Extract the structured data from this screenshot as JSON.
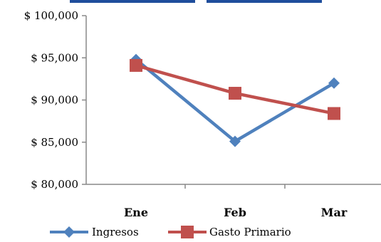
{
  "chart_data": {
    "type": "line",
    "categories": [
      "Ene",
      "Feb",
      "Mar"
    ],
    "series": [
      {
        "name": "Ingresos",
        "values": [
          94800,
          85100,
          92000
        ],
        "color": "#4f81bd",
        "marker": "diamond"
      },
      {
        "name": "Gasto Primario",
        "values": [
          94100,
          90800,
          88400
        ],
        "color": "#c0504d",
        "marker": "square"
      }
    ],
    "ylim": [
      80000,
      100000
    ],
    "yticks": [
      80000,
      85000,
      90000,
      95000,
      100000
    ],
    "ytick_labels": [
      "$ 80,000",
      "$ 85,000",
      "$ 90,000",
      "$ 95,000",
      "$ 100,000"
    ],
    "grid": false,
    "legend_position": "bottom",
    "title_color": "#1f4e9c"
  }
}
